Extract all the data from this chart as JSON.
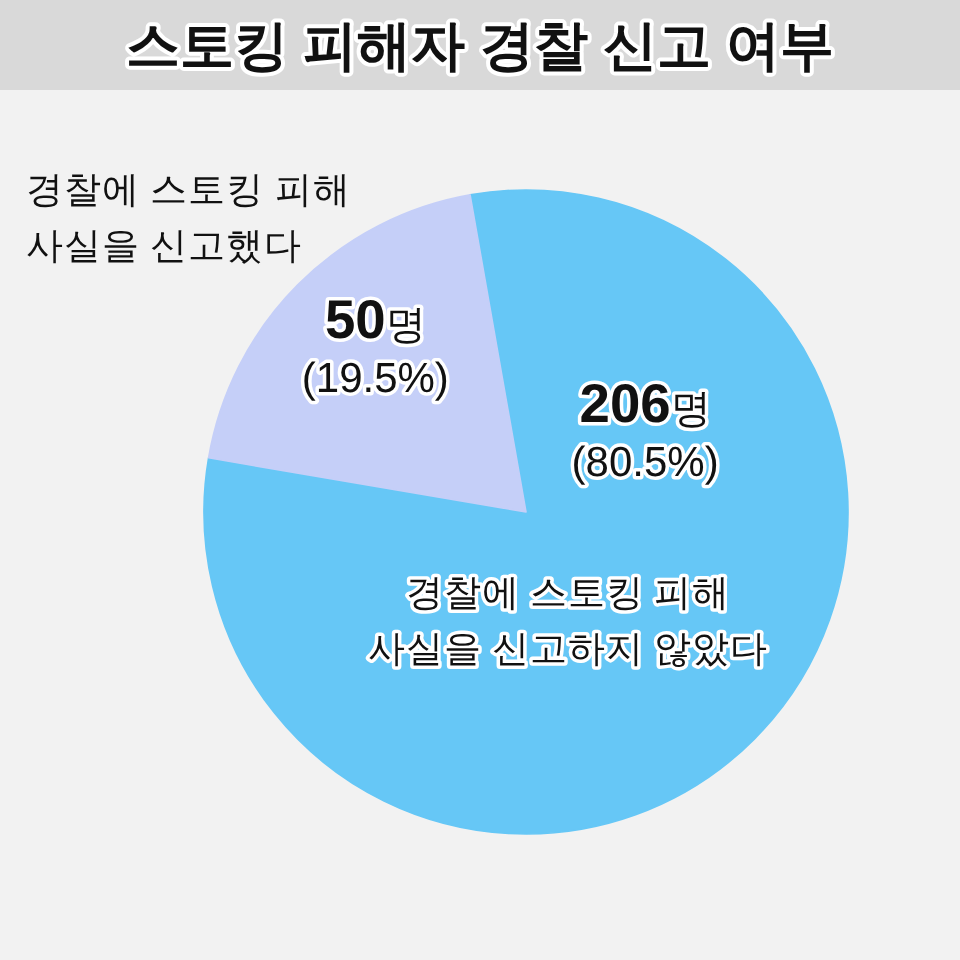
{
  "chart_data": {
    "type": "pie",
    "title": "스토킹 피해자 경찰 신고 여부",
    "categories": [
      "경찰에 스토킹 피해\n사실을 신고하지 않았다",
      "경찰에 스토킹 피해\n사실을 신고했다"
    ],
    "values": [
      206,
      50
    ],
    "colors": [
      "#66c7f6",
      "#c5cff8"
    ],
    "value_labels": [
      "206명\n(80.5%)",
      "50명\n(19.5%)"
    ]
  }
}
